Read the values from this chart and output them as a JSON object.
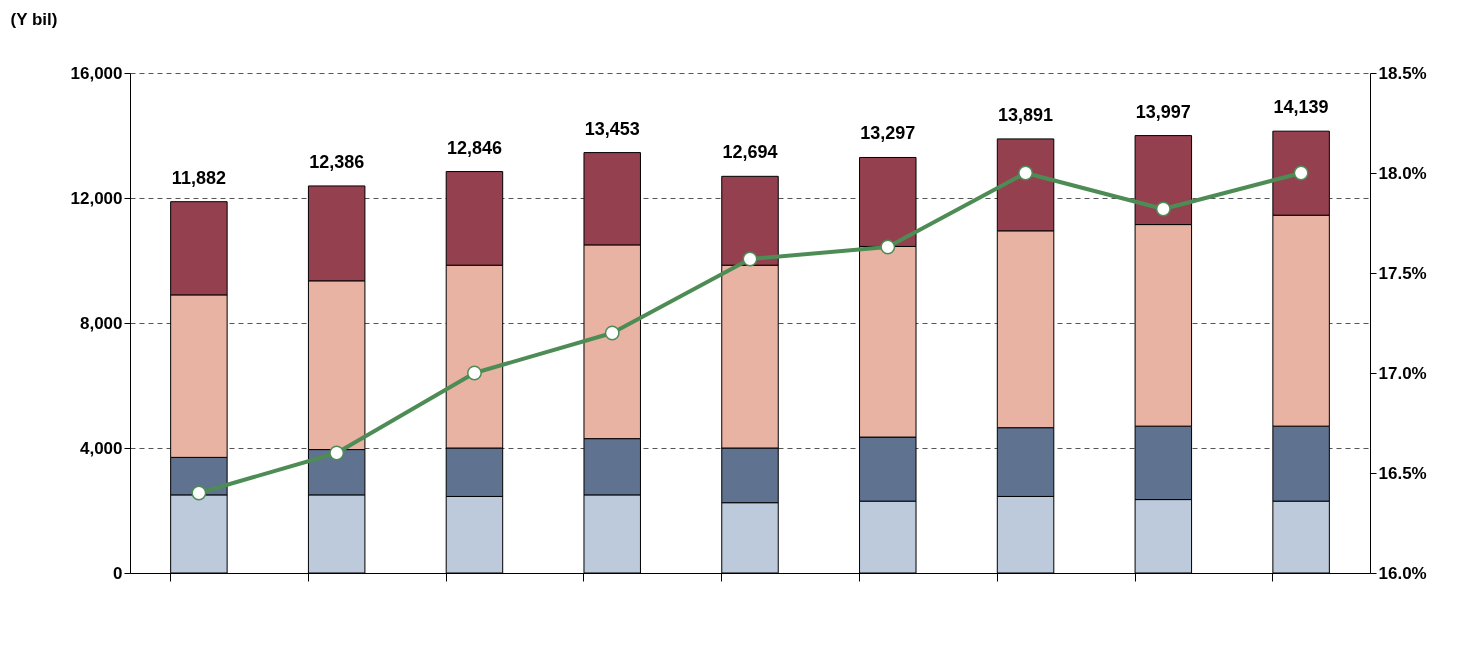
{
  "chart_data": {
    "type": "bar",
    "stacked": true,
    "ylabel": "(Y bil)",
    "categories": [
      null,
      null,
      null,
      null,
      null,
      null,
      null,
      null,
      null
    ],
    "series": [
      {
        "color": "#bccadb",
        "values": [
          2500,
          2500,
          2450,
          2500,
          2250,
          2300,
          2450,
          2350,
          2300
        ]
      },
      {
        "color": "#5f7290",
        "values": [
          1200,
          1450,
          1550,
          1800,
          1750,
          2050,
          2200,
          2350,
          2400
        ]
      },
      {
        "color": "#e9b3a3",
        "values": [
          5200,
          5400,
          5850,
          6200,
          5850,
          6100,
          6300,
          6450,
          6750
        ]
      },
      {
        "color": "#94404f",
        "values": [
          2982,
          3036,
          2996,
          2953,
          2844,
          2847,
          2941,
          2847,
          2689
        ]
      },
      {
        "type": "line",
        "axis": "y2",
        "color": "#4e8c55",
        "marker": "circle",
        "values": [
          16.4,
          16.6,
          17.0,
          17.2,
          17.57,
          17.63,
          18.0,
          17.82,
          18.0
        ]
      }
    ],
    "totals": [
      "11,882",
      "12,386",
      "12,846",
      "13,453",
      "12,694",
      "13,297",
      "13,891",
      "13,997",
      "14,139"
    ],
    "ylim": [
      0,
      16000
    ],
    "yticks": [
      {
        "value": 0,
        "label": "0"
      },
      {
        "value": 4000,
        "label": "4,000"
      },
      {
        "value": 8000,
        "label": "8,000"
      },
      {
        "value": 12000,
        "label": "12,000"
      },
      {
        "value": 16000,
        "label": "16,000"
      }
    ],
    "y2lim": [
      16.0,
      18.5
    ],
    "y2ticks": [
      {
        "value": 16.0,
        "label": "16.0%"
      },
      {
        "value": 16.5,
        "label": "16.5%"
      },
      {
        "value": 17.0,
        "label": "17.0%"
      },
      {
        "value": 17.5,
        "label": "17.5%"
      },
      {
        "value": 18.0,
        "label": "18.0%"
      },
      {
        "value": 18.5,
        "label": "18.5%"
      }
    ],
    "grid": "y",
    "line_style": "solid"
  }
}
